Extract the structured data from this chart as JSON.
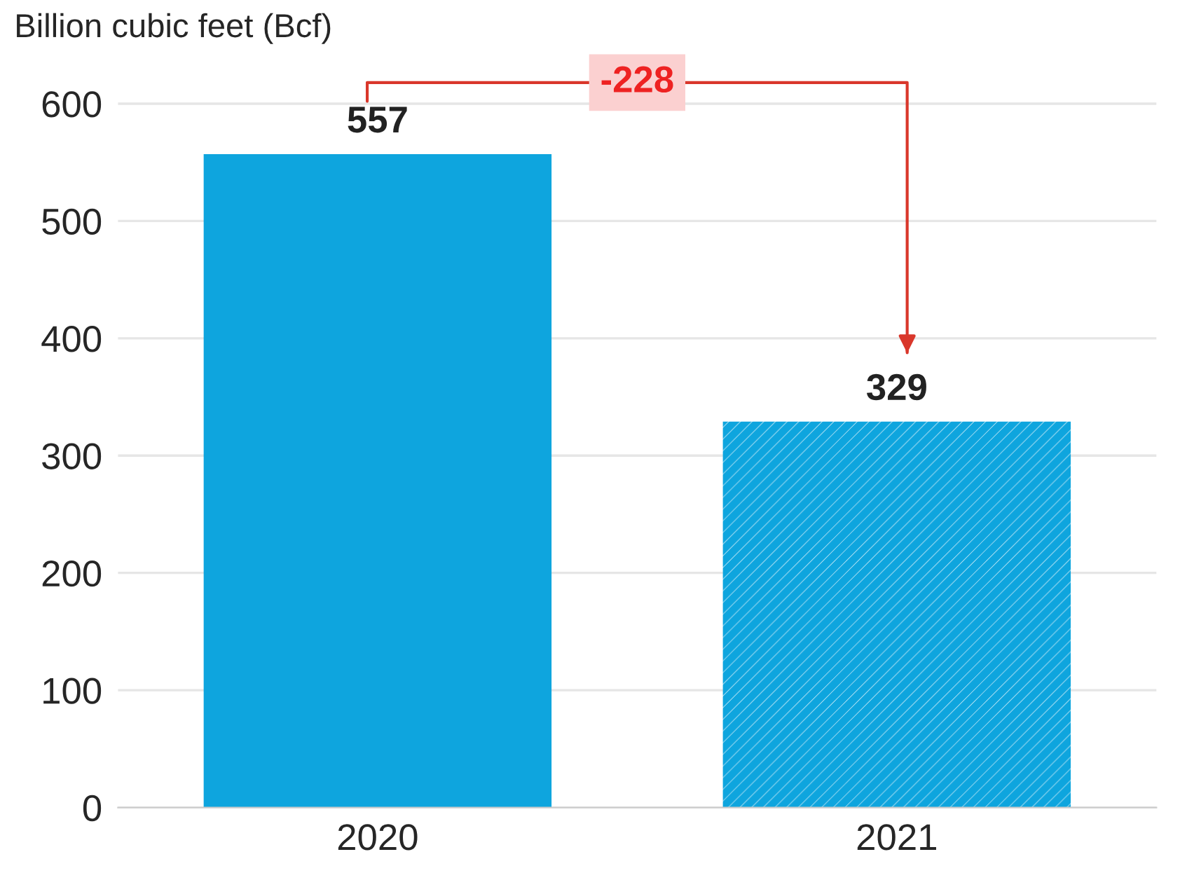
{
  "chart_data": {
    "type": "bar",
    "ylabel": "Billion cubic feet (Bcf)",
    "categories": [
      "2020",
      "2021"
    ],
    "values": [
      557,
      329
    ],
    "colors": [
      "#0ea5de",
      "#0ea5de"
    ],
    "ylim": [
      0,
      640
    ],
    "yticks": [
      0,
      100,
      200,
      300,
      400,
      500,
      600
    ],
    "grid": "y",
    "data_labels": true,
    "annotations": [
      "-228"
    ]
  }
}
